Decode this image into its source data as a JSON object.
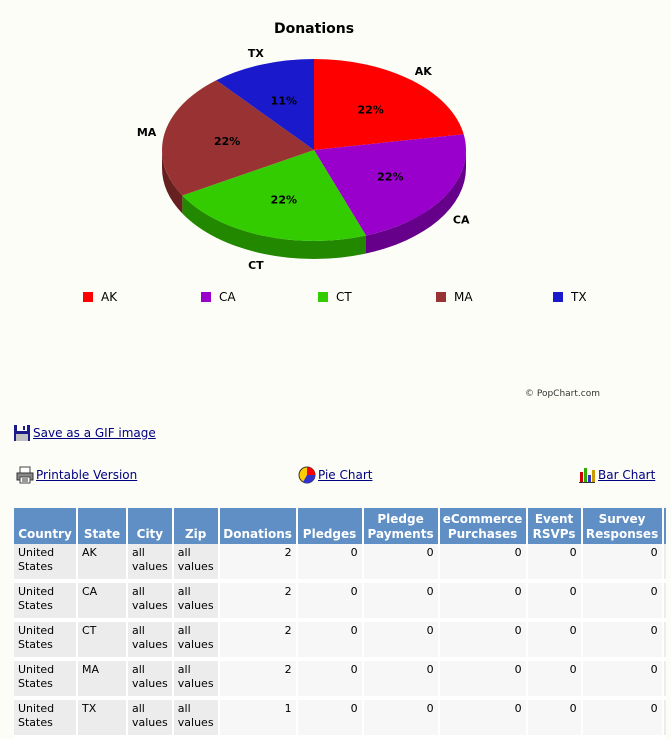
{
  "chart_data": {
    "type": "pie",
    "title": "Donations",
    "slices": [
      {
        "label": "AK",
        "value": 2,
        "percent_label": "22%",
        "color": "#ff0000",
        "side": "#b00000"
      },
      {
        "label": "CA",
        "value": 2,
        "percent_label": "22%",
        "color": "#9900cc",
        "side": "#66008a"
      },
      {
        "label": "CT",
        "value": 2,
        "percent_label": "22%",
        "color": "#33cc00",
        "side": "#228800"
      },
      {
        "label": "MA",
        "value": 2,
        "percent_label": "22%",
        "color": "#993333",
        "side": "#662020"
      },
      {
        "label": "TX",
        "value": 1,
        "percent_label": "11%",
        "color": "#1a1acc",
        "side": "#101088"
      }
    ],
    "legend_placement": "bottom",
    "credit": "© PopChart.com"
  },
  "links": {
    "save_gif": "Save as a GIF image",
    "printable": "Printable Version",
    "pie_chart": "Pie Chart",
    "bar_chart": "Bar Chart"
  },
  "icons": {
    "save": "floppy-disk-icon",
    "printable": "printer-icon",
    "pie": "pie-chart-icon",
    "bar": "bar-chart-icon"
  },
  "table": {
    "columns": [
      "Country",
      "State",
      "City",
      "Zip",
      "Donations",
      "Pledges",
      "Pledge Payments",
      "eCommerce Purchases",
      "Event RSVPs",
      "Survey Responses"
    ],
    "rows": [
      [
        "United States",
        "AK",
        "all values",
        "all values",
        "2",
        "0",
        "0",
        "0",
        "0",
        "0"
      ],
      [
        "United States",
        "CA",
        "all values",
        "all values",
        "2",
        "0",
        "0",
        "0",
        "0",
        "0"
      ],
      [
        "United States",
        "CT",
        "all values",
        "all values",
        "2",
        "0",
        "0",
        "0",
        "0",
        "0"
      ],
      [
        "United States",
        "MA",
        "all values",
        "all values",
        "2",
        "0",
        "0",
        "0",
        "0",
        "0"
      ],
      [
        "United States",
        "TX",
        "all values",
        "all values",
        "1",
        "0",
        "0",
        "0",
        "0",
        "0"
      ]
    ]
  }
}
